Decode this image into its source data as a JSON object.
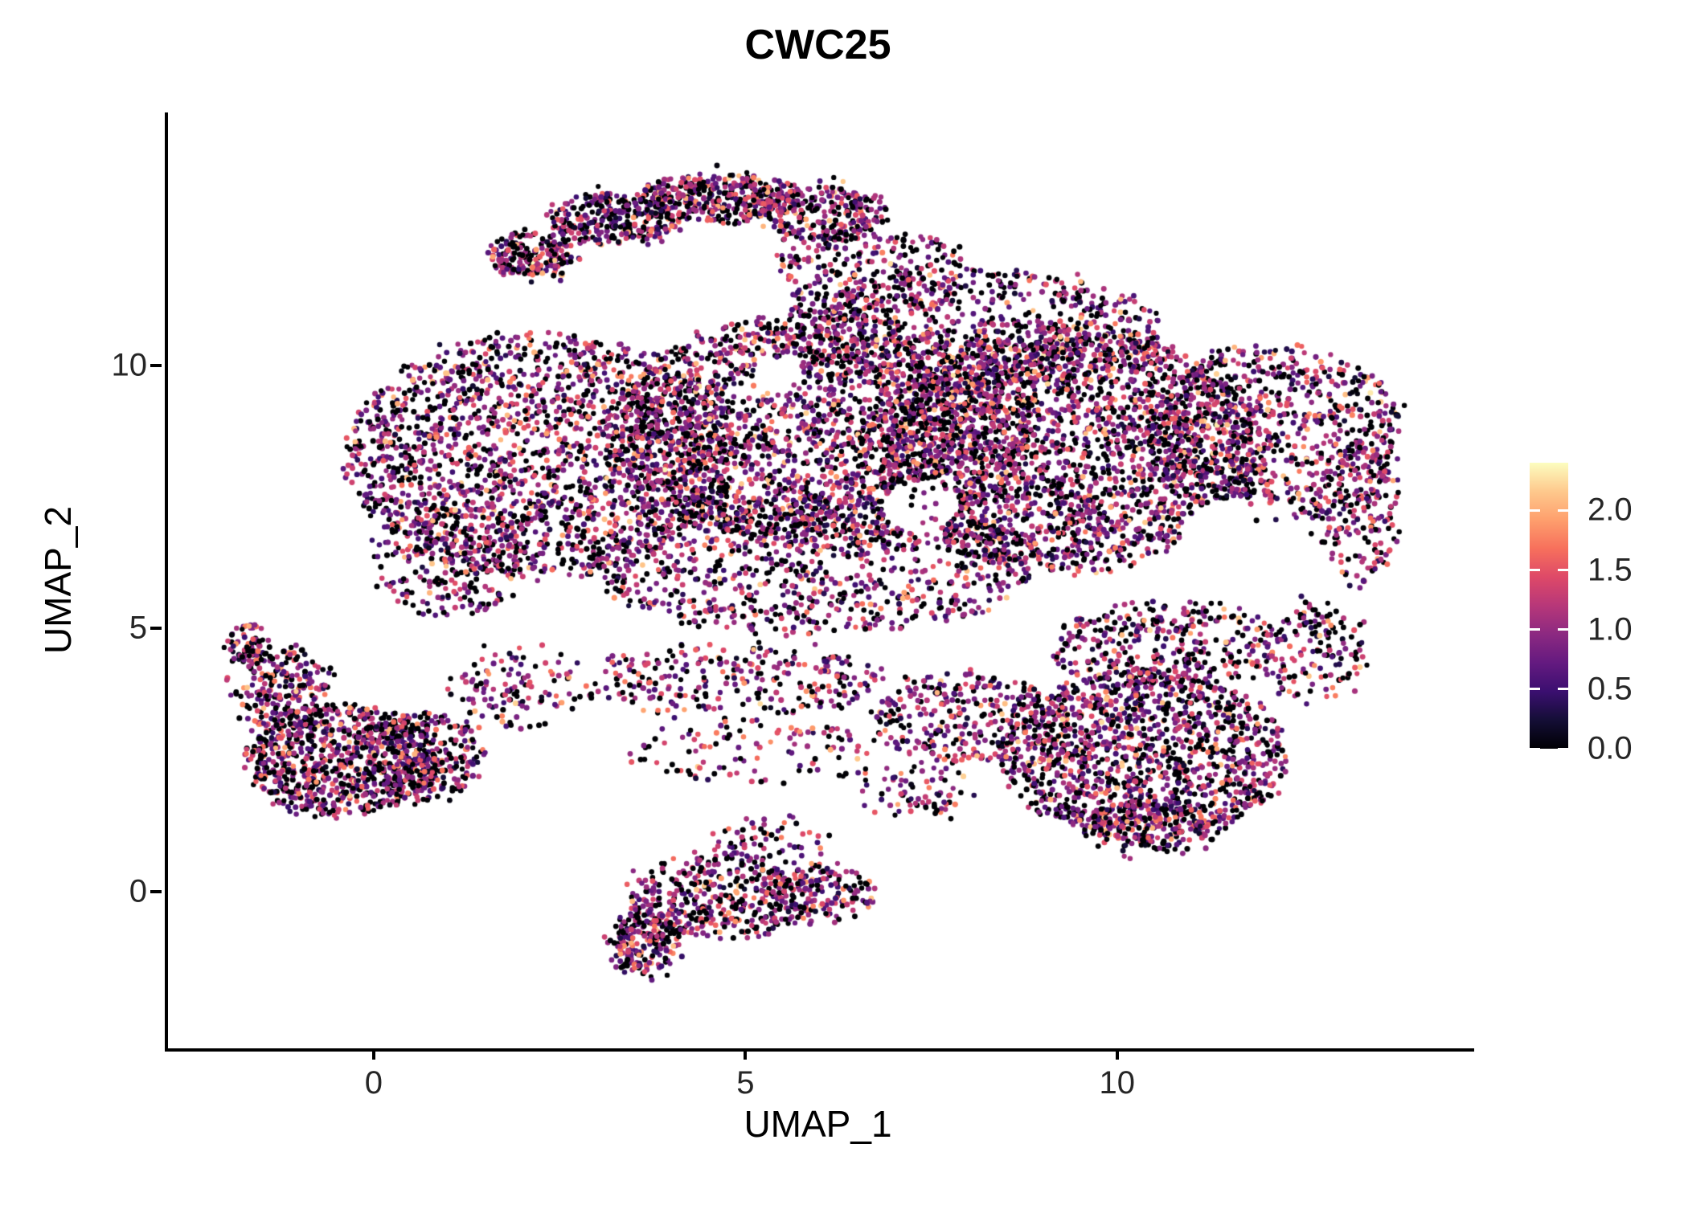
{
  "title": "CWC25",
  "chart_data": {
    "type": "scatter",
    "title": "CWC25",
    "xlabel": "UMAP_1",
    "ylabel": "UMAP_2",
    "xlim": [
      -2.81,
      14.76
    ],
    "ylim": [
      -2.98,
      14.81
    ],
    "x_ticks": [
      0,
      5,
      10
    ],
    "y_ticks": [
      0,
      5,
      10
    ],
    "grid": false,
    "legend_position": "right",
    "point_radius_px": 3.1,
    "n_points_approx": 16000,
    "seed": 20240612,
    "colorbar": {
      "label_values": [
        "2.0",
        "1.5",
        "1.0",
        "0.5",
        "0.0"
      ],
      "vmin": 0.0,
      "vmax": 2.4,
      "palette": "magma",
      "stops": [
        [
          0.0,
          "#000004"
        ],
        [
          0.1,
          "#140e36"
        ],
        [
          0.2,
          "#3b0f70"
        ],
        [
          0.3,
          "#641a80"
        ],
        [
          0.4,
          "#8c2981"
        ],
        [
          0.5,
          "#b73779"
        ],
        [
          0.6,
          "#de4968"
        ],
        [
          0.7,
          "#f7705c"
        ],
        [
          0.8,
          "#fe9f6d"
        ],
        [
          0.9,
          "#fec98d"
        ],
        [
          1.0,
          "#fcfdbf"
        ]
      ]
    },
    "value_distribution": {
      "p_zero": 0.31,
      "p_high": 0.09,
      "high_range": [
        1.4,
        2.2
      ],
      "mean": 0.95,
      "sd": 0.42
    },
    "clusters": [
      {
        "cx": 2.1,
        "cy": 12.1,
        "rx": 0.55,
        "ry": 0.45,
        "n": 200
      },
      {
        "cx": 3.2,
        "cy": 12.8,
        "rx": 0.85,
        "ry": 0.5,
        "n": 300
      },
      {
        "cx": 4.6,
        "cy": 13.2,
        "rx": 1.05,
        "ry": 0.45,
        "n": 380
      },
      {
        "cx": 6.0,
        "cy": 12.9,
        "rx": 0.85,
        "ry": 0.55,
        "n": 260
      },
      {
        "cx": 6.7,
        "cy": 11.8,
        "rx": 1.3,
        "ry": 0.85,
        "n": 260
      },
      {
        "cx": 2.2,
        "cy": 8.3,
        "rx": 2.6,
        "ry": 2.3,
        "n": 2000
      },
      {
        "cx": 6.0,
        "cy": 8.8,
        "rx": 2.8,
        "ry": 2.2,
        "n": 2200
      },
      {
        "cx": 9.3,
        "cy": 8.4,
        "rx": 2.6,
        "ry": 2.3,
        "n": 2400
      },
      {
        "cx": 12.0,
        "cy": 8.7,
        "rx": 1.8,
        "ry": 1.7,
        "n": 850
      },
      {
        "cx": 13.2,
        "cy": 7.2,
        "rx": 0.6,
        "ry": 1.4,
        "n": 170
      },
      {
        "cx": 5.9,
        "cy": 6.2,
        "rx": 3.0,
        "ry": 1.3,
        "n": 900
      },
      {
        "cx": 8.0,
        "cy": 10.7,
        "rx": 2.6,
        "ry": 1.1,
        "n": 700
      },
      {
        "cx": 1.0,
        "cy": 6.3,
        "rx": 1.0,
        "ry": 1.1,
        "n": 260
      },
      {
        "cx": 10.3,
        "cy": 2.6,
        "rx": 1.9,
        "ry": 1.6,
        "n": 1400
      },
      {
        "cx": 7.9,
        "cy": 3.3,
        "rx": 1.2,
        "ry": 0.9,
        "n": 300
      },
      {
        "cx": 10.6,
        "cy": 4.7,
        "rx": 1.6,
        "ry": 0.8,
        "n": 350
      },
      {
        "cx": 10.4,
        "cy": 1.2,
        "rx": 1.0,
        "ry": 0.5,
        "n": 150
      },
      {
        "cx": 12.6,
        "cy": 4.6,
        "rx": 0.7,
        "ry": 0.95,
        "n": 150
      },
      {
        "cx": -0.45,
        "cy": 2.5,
        "rx": 1.3,
        "ry": 1.05,
        "n": 850
      },
      {
        "cx": -1.3,
        "cy": 3.9,
        "rx": 0.65,
        "ry": 0.8,
        "n": 220
      },
      {
        "cx": -1.75,
        "cy": 4.7,
        "rx": 0.28,
        "ry": 0.38,
        "n": 60
      },
      {
        "cx": 0.7,
        "cy": 2.6,
        "rx": 0.75,
        "ry": 0.85,
        "n": 250
      },
      {
        "cx": 1.9,
        "cy": 3.9,
        "rx": 0.95,
        "ry": 0.8,
        "n": 120
      },
      {
        "cx": 4.8,
        "cy": 4.0,
        "rx": 2.0,
        "ry": 0.7,
        "n": 280
      },
      {
        "cx": 5.2,
        "cy": 2.6,
        "rx": 1.8,
        "ry": 0.6,
        "n": 110
      },
      {
        "cx": 7.2,
        "cy": 1.9,
        "rx": 0.8,
        "ry": 0.5,
        "n": 70
      },
      {
        "cx": 4.6,
        "cy": -0.1,
        "rx": 1.3,
        "ry": 0.8,
        "n": 420
      },
      {
        "cx": 3.6,
        "cy": -1.0,
        "rx": 0.45,
        "ry": 0.62,
        "n": 200
      },
      {
        "cx": 6.0,
        "cy": 0.0,
        "rx": 0.65,
        "ry": 0.6,
        "n": 140
      },
      {
        "cx": 5.3,
        "cy": 1.0,
        "rx": 0.8,
        "ry": 0.4,
        "n": 60
      }
    ],
    "holes": [
      {
        "cx": 11.6,
        "cy": 6.7,
        "r": 0.8
      },
      {
        "cx": 3.4,
        "cy": 11.7,
        "r": 0.6
      },
      {
        "cx": 4.9,
        "cy": 12.15,
        "r": 0.45
      },
      {
        "cx": 5.4,
        "cy": 9.8,
        "r": 0.35
      },
      {
        "cx": 7.3,
        "cy": 7.3,
        "r": 0.5
      },
      {
        "cx": 8.6,
        "cy": 4.9,
        "r": 0.55
      }
    ]
  }
}
